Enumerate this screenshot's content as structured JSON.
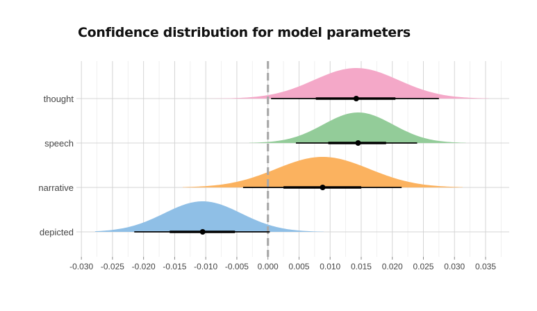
{
  "chart_data": {
    "type": "density",
    "title": "Confidence distribution for model parameters",
    "xlabel": "",
    "ylabel": "",
    "xlim": [
      -0.0308,
      0.0388
    ],
    "x_ticks": [
      "-0.030",
      "-0.025",
      "-0.020",
      "-0.015",
      "-0.010",
      "-0.005",
      "0.000",
      "0.005",
      "0.010",
      "0.015",
      "0.020",
      "0.025",
      "0.030",
      "0.035"
    ],
    "reference_line_x": 0.0,
    "grid": true,
    "legend": "none",
    "categories": [
      "thought",
      "speech",
      "narrative",
      "depicted"
    ],
    "series": [
      {
        "name": "thought",
        "color": "#f4a8c8",
        "mode": 0.0142,
        "sd": 0.0068,
        "min": -0.0095,
        "max": 0.0355,
        "interval_66": [
          0.0077,
          0.0205
        ],
        "interval_95": [
          0.0005,
          0.0275
        ],
        "point": 0.0142
      },
      {
        "name": "speech",
        "color": "#93cc99",
        "mode": 0.0145,
        "sd": 0.0056,
        "min": -0.003,
        "max": 0.0318,
        "interval_66": [
          0.0097,
          0.019
        ],
        "interval_95": [
          0.0045,
          0.024
        ],
        "point": 0.0145
      },
      {
        "name": "narrative",
        "color": "#fbb25f",
        "mode": 0.0088,
        "sd": 0.0075,
        "min": -0.0137,
        "max": 0.0313,
        "interval_66": [
          0.0025,
          0.015
        ],
        "interval_95": [
          -0.004,
          0.0215
        ],
        "point": 0.0088
      },
      {
        "name": "depicted",
        "color": "#8fbfe6",
        "mode": -0.0105,
        "sd": 0.0062,
        "min": -0.0278,
        "max": 0.009,
        "interval_66": [
          -0.0158,
          -0.0053
        ],
        "interval_95": [
          -0.0215,
          0.0003
        ],
        "point": -0.0105
      }
    ]
  }
}
